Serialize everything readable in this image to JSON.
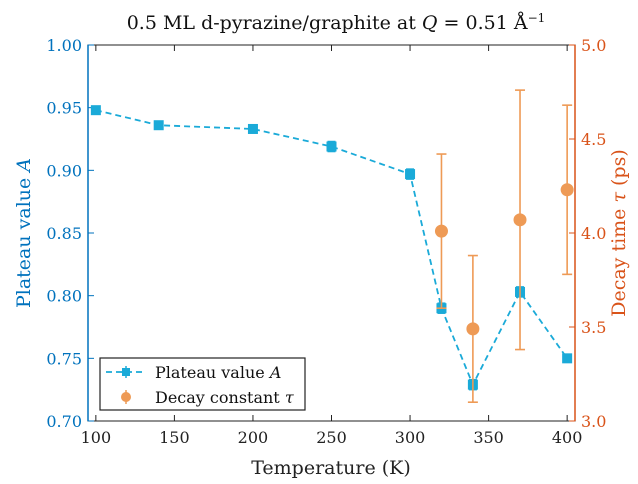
{
  "chart_data": {
    "type": "scatter",
    "title": "0.5 ML d-pyrazine/graphite at Q = 0.51 Å⁻¹",
    "xlabel": "Temperature (K)",
    "ylabel_left": "Plateau value A",
    "ylabel_right": "Decay time τ (ps)",
    "xlim": [
      95,
      405
    ],
    "ylim_left": [
      0.7,
      1.0
    ],
    "ylim_right": [
      3.0,
      5.0
    ],
    "x_ticks": [
      100,
      150,
      200,
      250,
      300,
      350,
      400
    ],
    "y_left_ticks": [
      "0.70",
      "0.75",
      "0.80",
      "0.85",
      "0.90",
      "0.95",
      "1.00"
    ],
    "y_right_ticks": [
      "3.0",
      "3.5",
      "4.0",
      "4.5",
      "5.0"
    ],
    "grid": false,
    "legend_position": "bottom-left",
    "colors": {
      "left_axis": "#0072BD",
      "right_axis": "#D95319",
      "plateau": "#1AAAD8",
      "decay": "#EE9A55"
    },
    "series": [
      {
        "name": "Plateau value A",
        "axis": "left",
        "style": "dashed-line-square-markers",
        "x": [
          100,
          140,
          200,
          250,
          300,
          320,
          340,
          370,
          400
        ],
        "y": [
          0.948,
          0.936,
          0.933,
          0.919,
          0.897,
          0.79,
          0.729,
          0.803,
          0.75
        ],
        "err": [
          0.003,
          0.003,
          0.003,
          0.004,
          0.004,
          0.004,
          0.004,
          0.004,
          0.003
        ]
      },
      {
        "name": "Decay constant τ",
        "axis": "right",
        "style": "circle-markers",
        "x": [
          320,
          340,
          370,
          400
        ],
        "y": [
          4.01,
          3.49,
          4.07,
          4.23
        ],
        "err": [
          0.41,
          0.39,
          0.69,
          0.45
        ]
      }
    ]
  }
}
